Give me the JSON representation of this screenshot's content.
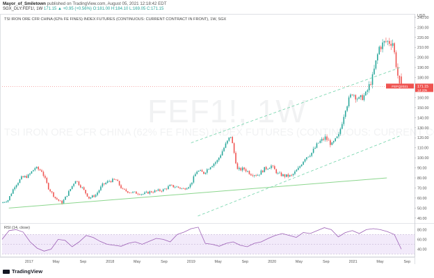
{
  "header": {
    "author": "Mayor_of_Smiletown",
    "published": "published on TradingView.com, August 05, 2021 12:18:42 EDT",
    "symbol_line": "SGX_DLY:FEF1!, 1W",
    "ohlc": "171.15 ▲ +0.95 (+0.56%) O:181.00 H:184.10 L:169.05 C:171.15"
  },
  "pane_title": "TSI IRON ORE CFR CHINA (62% FE FINES) INDEX FUTURES (CONTINUOUS: CURRENT CONTRACT IN FRONT), 1W, SGX",
  "watermark": {
    "symbol": "FEF1!, 1W",
    "description": "TSI IRON ORE CFR CHINA (62% FE FINES) INDEX FUTURES (CONTINUOUS: CURRENT CONTRACT IN FRONT)"
  },
  "rsi_title": "RSI (14, close)",
  "footer_logo": "TradingView",
  "price_labels": {
    "currency": "USD",
    "last_symbol": "FEFQ2021",
    "last_price": "171.15",
    "countdown": "1d 20h"
  },
  "colors": {
    "up": "#26a69a",
    "down": "#ef5350",
    "channel": "#6fd3a8",
    "support": "#8bd68d",
    "rsi_line": "#9c5fb5",
    "rsi_band": "#e9dcf7"
  },
  "chart_data": {
    "type": "candlestick",
    "title": "TSI IRON ORE CFR CHINA (62% FE FINES) INDEX FUTURES (CONTINUOUS: CURRENT CONTRACT IN FRONT), 1W, SGX",
    "interval": "1W",
    "x_tick_labels": [
      "2017",
      "May",
      "Sep",
      "2018",
      "May",
      "Sep",
      "2019",
      "May",
      "Sep",
      "2020",
      "May",
      "Sep",
      "2021",
      "May",
      "Sep"
    ],
    "x_range": [
      "2016-09",
      "2021-10"
    ],
    "y_ticks": [
      40,
      50,
      60,
      70,
      80,
      90,
      100,
      110,
      120,
      130,
      140,
      150,
      160,
      170,
      180,
      190,
      200,
      210,
      220,
      230,
      240
    ],
    "ylim": [
      35,
      242
    ],
    "y_axis_label": "USD",
    "last_close": 171.15,
    "close_path": [
      {
        "date": "2016-09",
        "close": 55
      },
      {
        "date": "2016-10",
        "close": 58
      },
      {
        "date": "2016-11",
        "close": 72
      },
      {
        "date": "2016-12",
        "close": 80
      },
      {
        "date": "2017-01",
        "close": 82
      },
      {
        "date": "2017-02",
        "close": 90
      },
      {
        "date": "2017-03",
        "close": 87
      },
      {
        "date": "2017-04",
        "close": 70
      },
      {
        "date": "2017-05",
        "close": 60
      },
      {
        "date": "2017-06",
        "close": 55
      },
      {
        "date": "2017-07",
        "close": 66
      },
      {
        "date": "2017-08",
        "close": 78
      },
      {
        "date": "2017-09",
        "close": 70
      },
      {
        "date": "2017-10",
        "close": 60
      },
      {
        "date": "2017-11",
        "close": 63
      },
      {
        "date": "2017-12",
        "close": 73
      },
      {
        "date": "2018-01",
        "close": 77
      },
      {
        "date": "2018-02",
        "close": 78
      },
      {
        "date": "2018-03",
        "close": 68
      },
      {
        "date": "2018-04",
        "close": 66
      },
      {
        "date": "2018-05",
        "close": 65
      },
      {
        "date": "2018-06",
        "close": 64
      },
      {
        "date": "2018-07",
        "close": 66
      },
      {
        "date": "2018-08",
        "close": 67
      },
      {
        "date": "2018-09",
        "close": 68
      },
      {
        "date": "2018-10",
        "close": 72
      },
      {
        "date": "2018-11",
        "close": 71
      },
      {
        "date": "2018-12",
        "close": 69
      },
      {
        "date": "2019-01",
        "close": 73
      },
      {
        "date": "2019-02",
        "close": 87
      },
      {
        "date": "2019-03",
        "close": 85
      },
      {
        "date": "2019-04",
        "close": 92
      },
      {
        "date": "2019-05",
        "close": 97
      },
      {
        "date": "2019-06",
        "close": 110
      },
      {
        "date": "2019-07",
        "close": 122
      },
      {
        "date": "2019-08",
        "close": 88
      },
      {
        "date": "2019-09",
        "close": 89
      },
      {
        "date": "2019-10",
        "close": 84
      },
      {
        "date": "2019-11",
        "close": 83
      },
      {
        "date": "2019-12",
        "close": 89
      },
      {
        "date": "2020-01",
        "close": 92
      },
      {
        "date": "2020-02",
        "close": 84
      },
      {
        "date": "2020-03",
        "close": 82
      },
      {
        "date": "2020-04",
        "close": 82
      },
      {
        "date": "2020-05",
        "close": 89
      },
      {
        "date": "2020-06",
        "close": 100
      },
      {
        "date": "2020-07",
        "close": 105
      },
      {
        "date": "2020-08",
        "close": 115
      },
      {
        "date": "2020-09",
        "close": 120
      },
      {
        "date": "2020-10",
        "close": 113
      },
      {
        "date": "2020-11",
        "close": 122
      },
      {
        "date": "2020-12",
        "close": 150
      },
      {
        "date": "2021-01",
        "close": 165
      },
      {
        "date": "2021-02",
        "close": 158
      },
      {
        "date": "2021-03",
        "close": 163
      },
      {
        "date": "2021-04",
        "close": 180
      },
      {
        "date": "2021-05",
        "close": 210
      },
      {
        "date": "2021-06",
        "close": 216
      },
      {
        "date": "2021-07",
        "close": 215
      },
      {
        "date": "2021-08",
        "close": 171.15
      }
    ],
    "trend_lines": [
      {
        "name": "support",
        "from": {
          "date": "2016-10",
          "price": 50
        },
        "to": {
          "date": "2021-06",
          "price": 80
        }
      },
      {
        "name": "channel-top",
        "from": {
          "date": "2019-01",
          "price": 115
        },
        "to": {
          "date": "2021-08",
          "price": 190
        }
      },
      {
        "name": "channel-bottom",
        "from": {
          "date": "2019-02",
          "price": 42
        },
        "to": {
          "date": "2021-08",
          "price": 122
        }
      }
    ],
    "rsi": {
      "title": "RSI (14, close)",
      "y_ticks": [
        40,
        60,
        80
      ],
      "ylim": [
        25,
        92
      ],
      "band": [
        30,
        70
      ],
      "values": [
        60,
        78,
        80,
        75,
        55,
        42,
        36,
        40,
        60,
        58,
        45,
        55,
        68,
        64,
        56,
        50,
        48,
        46,
        52,
        55,
        50,
        56,
        62,
        60,
        55,
        70,
        75,
        82,
        85,
        52,
        50,
        46,
        52,
        55,
        48,
        45,
        52,
        55,
        62,
        68,
        72,
        68,
        64,
        74,
        72,
        78,
        84,
        80,
        65,
        74,
        78,
        72,
        80,
        82,
        80,
        76,
        70,
        40
      ]
    }
  }
}
